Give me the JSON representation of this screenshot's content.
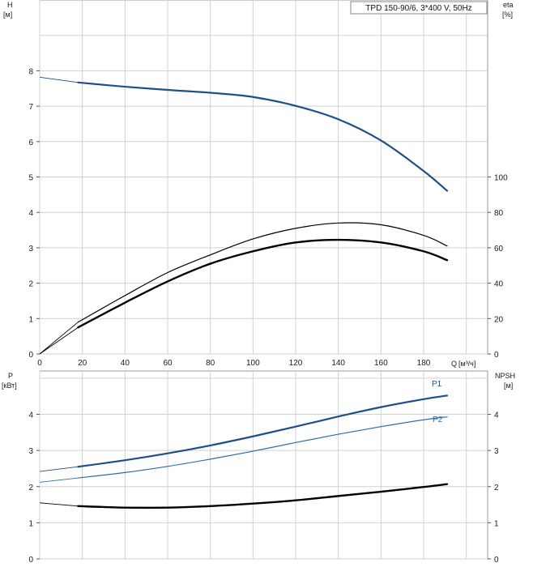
{
  "chart_data": [
    {
      "type": "line",
      "title": "TPD 150-90/6, 3*400 V, 50Hz",
      "x_label": "Q",
      "x_unit": "[м³/ч]",
      "x_ticks": [
        0,
        20,
        40,
        60,
        80,
        100,
        120,
        140,
        160,
        180
      ],
      "xlim": [
        0,
        210
      ],
      "y_left_label": "H",
      "y_left_unit": "[м]",
      "y_left_ticks": [
        0,
        1,
        2,
        3,
        4,
        5,
        6,
        7,
        8
      ],
      "ylim_left": [
        0,
        10
      ],
      "y_right_label": "eta",
      "y_right_unit": "[%]",
      "y_right_ticks": [
        0,
        20,
        40,
        60,
        80,
        100
      ],
      "ylim_right": [
        0,
        200
      ],
      "grid": true,
      "series": [
        {
          "axis": "left",
          "color": "#1f4e89",
          "x": [
            0,
            18,
            40,
            60,
            80,
            100,
            120,
            140,
            160,
            180,
            191
          ],
          "y": [
            7.82,
            7.67,
            7.55,
            7.46,
            7.38,
            7.26,
            7.01,
            6.63,
            6.03,
            5.17,
            4.61
          ]
        },
        {
          "axis": "right",
          "color": "#000000",
          "x": [
            0,
            18,
            40,
            60,
            80,
            100,
            120,
            140,
            160,
            180,
            191
          ],
          "y": [
            0,
            18,
            33,
            46,
            56,
            65,
            71,
            74,
            73,
            67,
            61
          ]
        },
        {
          "axis": "right",
          "color": "#000000",
          "x": [
            0,
            18,
            40,
            60,
            80,
            100,
            120,
            140,
            160,
            180,
            191
          ],
          "y": [
            0,
            15,
            29,
            41,
            51,
            58,
            63,
            64.5,
            63,
            58,
            53
          ]
        }
      ]
    },
    {
      "type": "line",
      "x_ticks": [
        0,
        20,
        40,
        60,
        80,
        100,
        120,
        140,
        160,
        180
      ],
      "xlim": [
        0,
        210
      ],
      "y_left_label": "P",
      "y_left_unit": "[кВт]",
      "y_left_ticks": [
        0,
        1,
        2,
        3,
        4
      ],
      "ylim_left": [
        0,
        5.2
      ],
      "y_right_label": "NPSH",
      "y_right_unit": "[м]",
      "y_right_ticks": [
        0,
        1,
        2,
        3,
        4
      ],
      "ylim_right": [
        0,
        5.2
      ],
      "grid": true,
      "series": [
        {
          "name": "P1",
          "axis": "left",
          "color": "#1f4e89",
          "x": [
            0,
            18,
            40,
            60,
            80,
            100,
            120,
            140,
            160,
            180,
            191
          ],
          "y": [
            2.42,
            2.55,
            2.73,
            2.92,
            3.14,
            3.39,
            3.66,
            3.94,
            4.2,
            4.42,
            4.52
          ]
        },
        {
          "name": "P2",
          "axis": "left",
          "color": "#2e6da4",
          "x": [
            0,
            18,
            40,
            60,
            80,
            100,
            120,
            140,
            160,
            180,
            191
          ],
          "y": [
            2.12,
            2.24,
            2.39,
            2.56,
            2.76,
            2.98,
            3.22,
            3.45,
            3.66,
            3.85,
            3.93
          ]
        },
        {
          "axis": "right",
          "color": "#000000",
          "x": [
            0,
            18,
            40,
            60,
            80,
            100,
            120,
            140,
            160,
            180,
            191
          ],
          "y": [
            1.55,
            1.46,
            1.42,
            1.42,
            1.46,
            1.53,
            1.62,
            1.74,
            1.86,
            1.99,
            2.07
          ]
        }
      ]
    }
  ]
}
